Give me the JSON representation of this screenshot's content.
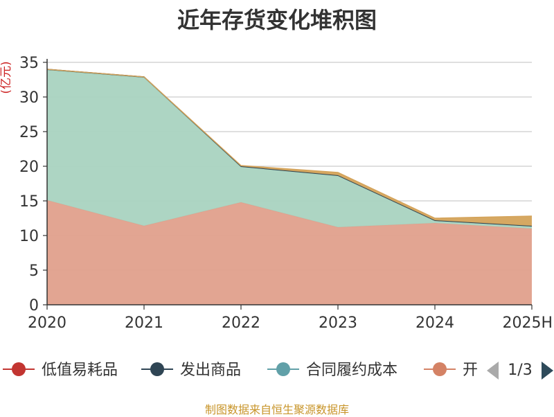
{
  "title": "近年存货变化堆积图",
  "footer": "制图数据来自恒生聚源数据库",
  "colors": {
    "成品": "#d4a35a",
    "合同履约成本_fill": "#a9d3c0",
    "开发成本_fill": "#e0a08c",
    "grid": "#cccccc",
    "axis": "#333333",
    "pager_active": "#2e4a5a",
    "pager_inactive": "#aaaaaa"
  },
  "legend": {
    "items": [
      {
        "name": "低值易耗品",
        "color": "#c23531",
        "icon": "circle-line-marker"
      },
      {
        "name": "发出商品",
        "color": "#2f4554",
        "icon": "circle-line-marker"
      },
      {
        "name": "合同履约成本",
        "color": "#61a0a8",
        "icon": "circle-line-marker"
      },
      {
        "name": "开",
        "color": "#d48265",
        "icon": "circle-line-marker"
      }
    ],
    "pager": {
      "text": "1/3",
      "prev_icon": "triangle-left-icon",
      "next_icon": "triangle-right-icon"
    }
  },
  "chart_data": {
    "type": "area",
    "stacked": true,
    "title": "近年存货变化堆积图",
    "ylabel": "(亿元)",
    "xlabel": "",
    "x": [
      "2020",
      "2021",
      "2022",
      "2023",
      "2024",
      "2025H"
    ],
    "ylim": [
      0,
      35
    ],
    "yticks": [
      0,
      5,
      10,
      15,
      20,
      25,
      30,
      35
    ],
    "grid": true,
    "legend_position": "bottom",
    "series": [
      {
        "name": "开",
        "color": "#e0a08c",
        "values": [
          15.1,
          11.4,
          14.8,
          11.2,
          11.8,
          11.0
        ]
      },
      {
        "name": "合同履约成本",
        "color": "#a9d3c0",
        "values": [
          18.8,
          21.4,
          5.1,
          7.4,
          0.3,
          0.3
        ]
      },
      {
        "name": "发出商品",
        "color": "#2f4554",
        "values": [
          0.1,
          0.1,
          0.1,
          0.1,
          0.1,
          0.1
        ]
      },
      {
        "color": "#d4a35a",
        "values": [
          0.0,
          0.0,
          0.1,
          0.4,
          0.3,
          1.4
        ]
      }
    ]
  }
}
